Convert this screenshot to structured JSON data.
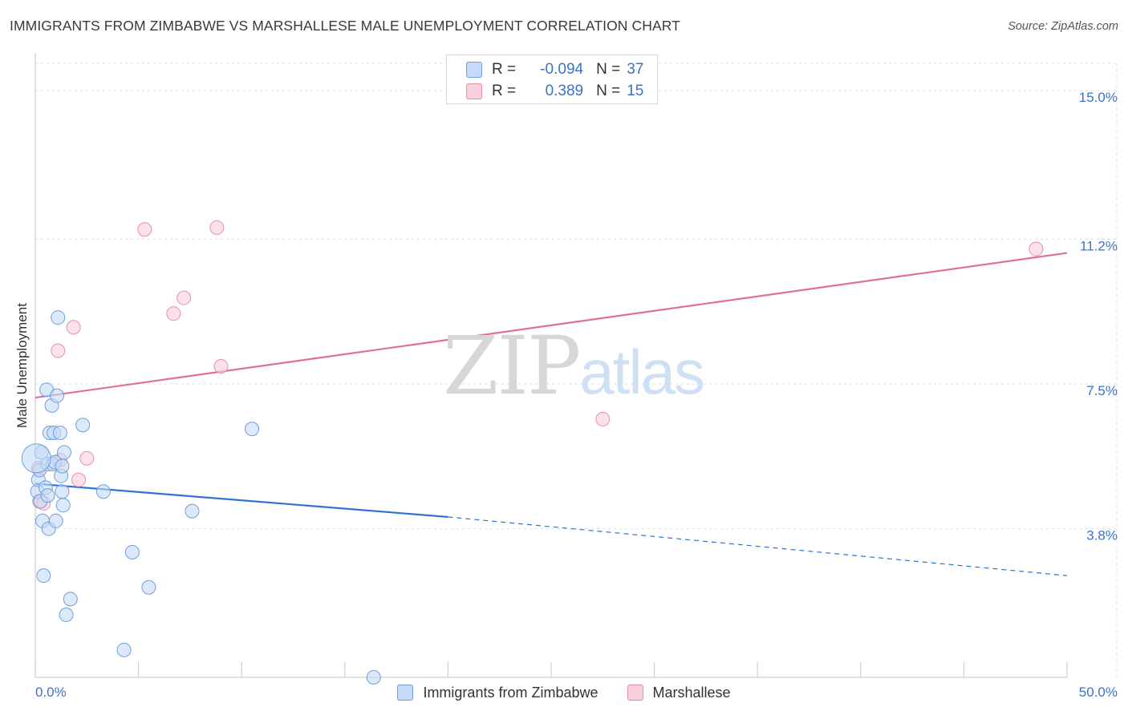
{
  "header": {
    "title": "IMMIGRANTS FROM ZIMBABWE VS MARSHALLESE MALE UNEMPLOYMENT CORRELATION CHART",
    "source": "Source: ZipAtlas.com"
  },
  "watermark": {
    "zip": "ZIP",
    "atlas": "atlas"
  },
  "legend": {
    "rows": [
      {
        "r_label": "R =",
        "r_value": "-0.094",
        "n_label": "N =",
        "n_value": "37"
      },
      {
        "r_label": "R =",
        "r_value": "0.389",
        "n_label": "N =",
        "n_value": "15"
      }
    ]
  },
  "colors": {
    "blue_fill": "#c5daf6",
    "blue_stroke": "#6f9fdc",
    "blue_line": "#2f72d3",
    "pink_fill": "#f9cfdc",
    "pink_stroke": "#e88fab",
    "pink_line": "#e0709a",
    "axis_label": "#3a73c9",
    "grid": "#dedede"
  },
  "chart_data": {
    "type": "scatter",
    "title": "IMMIGRANTS FROM ZIMBABWE VS MARSHALLESE MALE UNEMPLOYMENT CORRELATION CHART",
    "xlabel": "",
    "ylabel": "Male Unemployment",
    "xlim": [
      0,
      50
    ],
    "ylim": [
      0,
      15.8
    ],
    "x_tick_labels": [
      "0.0%",
      "50.0%"
    ],
    "y_ticks": [
      3.8,
      7.5,
      11.2,
      15.0
    ],
    "y_tick_labels": [
      "3.8%",
      "7.5%",
      "11.2%",
      "15.0%"
    ],
    "grid": true,
    "series": [
      {
        "name": "Immigrants from Zimbabwe",
        "x": [
          0.1,
          0.15,
          0.2,
          0.25,
          0.3,
          0.35,
          0.4,
          0.5,
          0.55,
          0.6,
          0.6,
          0.65,
          0.7,
          0.8,
          0.85,
          0.9,
          0.95,
          1.0,
          1.05,
          1.1,
          1.2,
          1.25,
          1.3,
          1.3,
          1.35,
          1.4,
          1.5,
          1.7,
          2.3,
          3.3,
          4.3,
          4.7,
          5.5,
          7.6,
          10.5,
          16.4,
          0.05
        ],
        "y": [
          4.75,
          5.05,
          5.3,
          4.5,
          5.75,
          4.0,
          2.6,
          4.85,
          7.35,
          5.45,
          4.65,
          3.8,
          6.25,
          6.95,
          5.45,
          6.25,
          5.5,
          4.0,
          7.2,
          9.2,
          6.25,
          5.15,
          5.4,
          4.75,
          4.4,
          5.75,
          1.6,
          2.0,
          6.45,
          4.75,
          0.7,
          3.2,
          2.3,
          4.25,
          6.35,
          0.0,
          5.6
        ],
        "trend": {
          "x": [
            0,
            20
          ],
          "y": [
            4.95,
            4.1
          ]
        },
        "trend_dashed": {
          "x": [
            20,
            50
          ],
          "y": [
            4.1,
            2.6
          ]
        }
      },
      {
        "name": "Marshallese",
        "x": [
          0.15,
          0.2,
          0.4,
          1.1,
          1.2,
          1.85,
          2.1,
          2.5,
          5.3,
          6.7,
          7.2,
          8.8,
          9.0,
          27.5,
          48.5
        ],
        "y": [
          5.35,
          4.5,
          4.45,
          8.35,
          5.55,
          8.95,
          5.05,
          5.6,
          11.45,
          9.3,
          9.7,
          11.5,
          7.95,
          6.6,
          10.95
        ],
        "trend": {
          "x": [
            0,
            50
          ],
          "y": [
            7.15,
            10.85
          ]
        }
      }
    ]
  }
}
